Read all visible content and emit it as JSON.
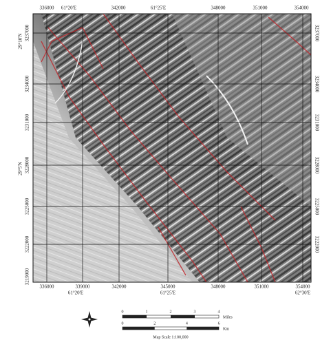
{
  "map": {
    "top_labels": [
      "336000",
      "61°20'E",
      "342000",
      "61°25'E",
      "348000",
      "351000",
      "354000"
    ],
    "bottom_labels": [
      "336000",
      "339000",
      "342000",
      "345000",
      "348000",
      "351000",
      "354000"
    ],
    "bottom_geo_labels": [
      "61°20'E",
      "61°25'E",
      "62°30'E"
    ],
    "left_labels": [
      "3237000",
      "3234000",
      "3231000",
      "3228000",
      "3225000",
      "3222000",
      "3219000"
    ],
    "left_geo_labels": [
      "29°10'N",
      "29°5'N"
    ],
    "right_labels": [
      "3237000",
      "3234000",
      "3231000",
      "3228000",
      "3225000",
      "3222000"
    ],
    "scale": {
      "miles_ticks": [
        "0",
        "1",
        "2",
        "3",
        "4"
      ],
      "miles_unit": "Miles",
      "km_ticks": [
        "0",
        "2",
        "4",
        "6"
      ],
      "km_unit": "Km",
      "caption": "Map Scale 1:100,000"
    }
  }
}
